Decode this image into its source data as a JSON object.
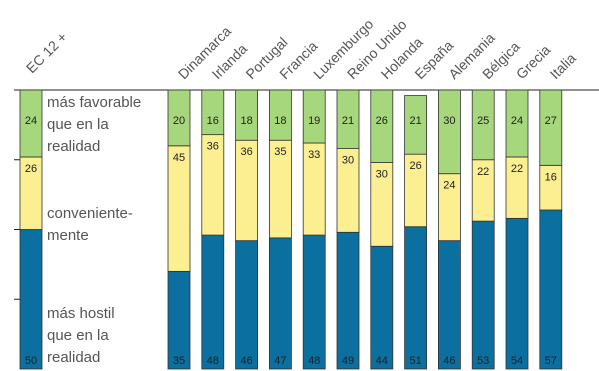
{
  "chart_data": {
    "type": "bar",
    "stacked": true,
    "categories": [
      "EC 12 +",
      "Dinamarca",
      "Irlanda",
      "Portugal",
      "Francia",
      "Luxemburgo",
      "Reino Unido",
      "Holanda",
      "España",
      "Alemania",
      "Bélgica",
      "Grecia",
      "Italia"
    ],
    "series": [
      {
        "name": "más hostil que en la realidad",
        "color": "#0b6fa0",
        "values": [
          50,
          35,
          48,
          46,
          47,
          48,
          49,
          44,
          51,
          46,
          53,
          54,
          57
        ]
      },
      {
        "name": "convenientemente",
        "color": "#fbef91",
        "values": [
          26,
          45,
          36,
          36,
          35,
          33,
          30,
          30,
          26,
          24,
          22,
          22,
          16
        ]
      },
      {
        "name": "más favorable que en la realidad",
        "color": "#a6d77c",
        "values": [
          24,
          20,
          16,
          18,
          18,
          19,
          21,
          26,
          21,
          30,
          25,
          24,
          27
        ]
      }
    ],
    "legend_labels": [
      {
        "lines": [
          "más favorable",
          "que en la",
          "realidad"
        ]
      },
      {
        "lines": [
          "convenientе-",
          "mente"
        ]
      },
      {
        "lines": [
          "más hostil",
          "que en la",
          "realidad"
        ]
      }
    ],
    "ylim": [
      0,
      100
    ],
    "legend": "inside first bar"
  }
}
